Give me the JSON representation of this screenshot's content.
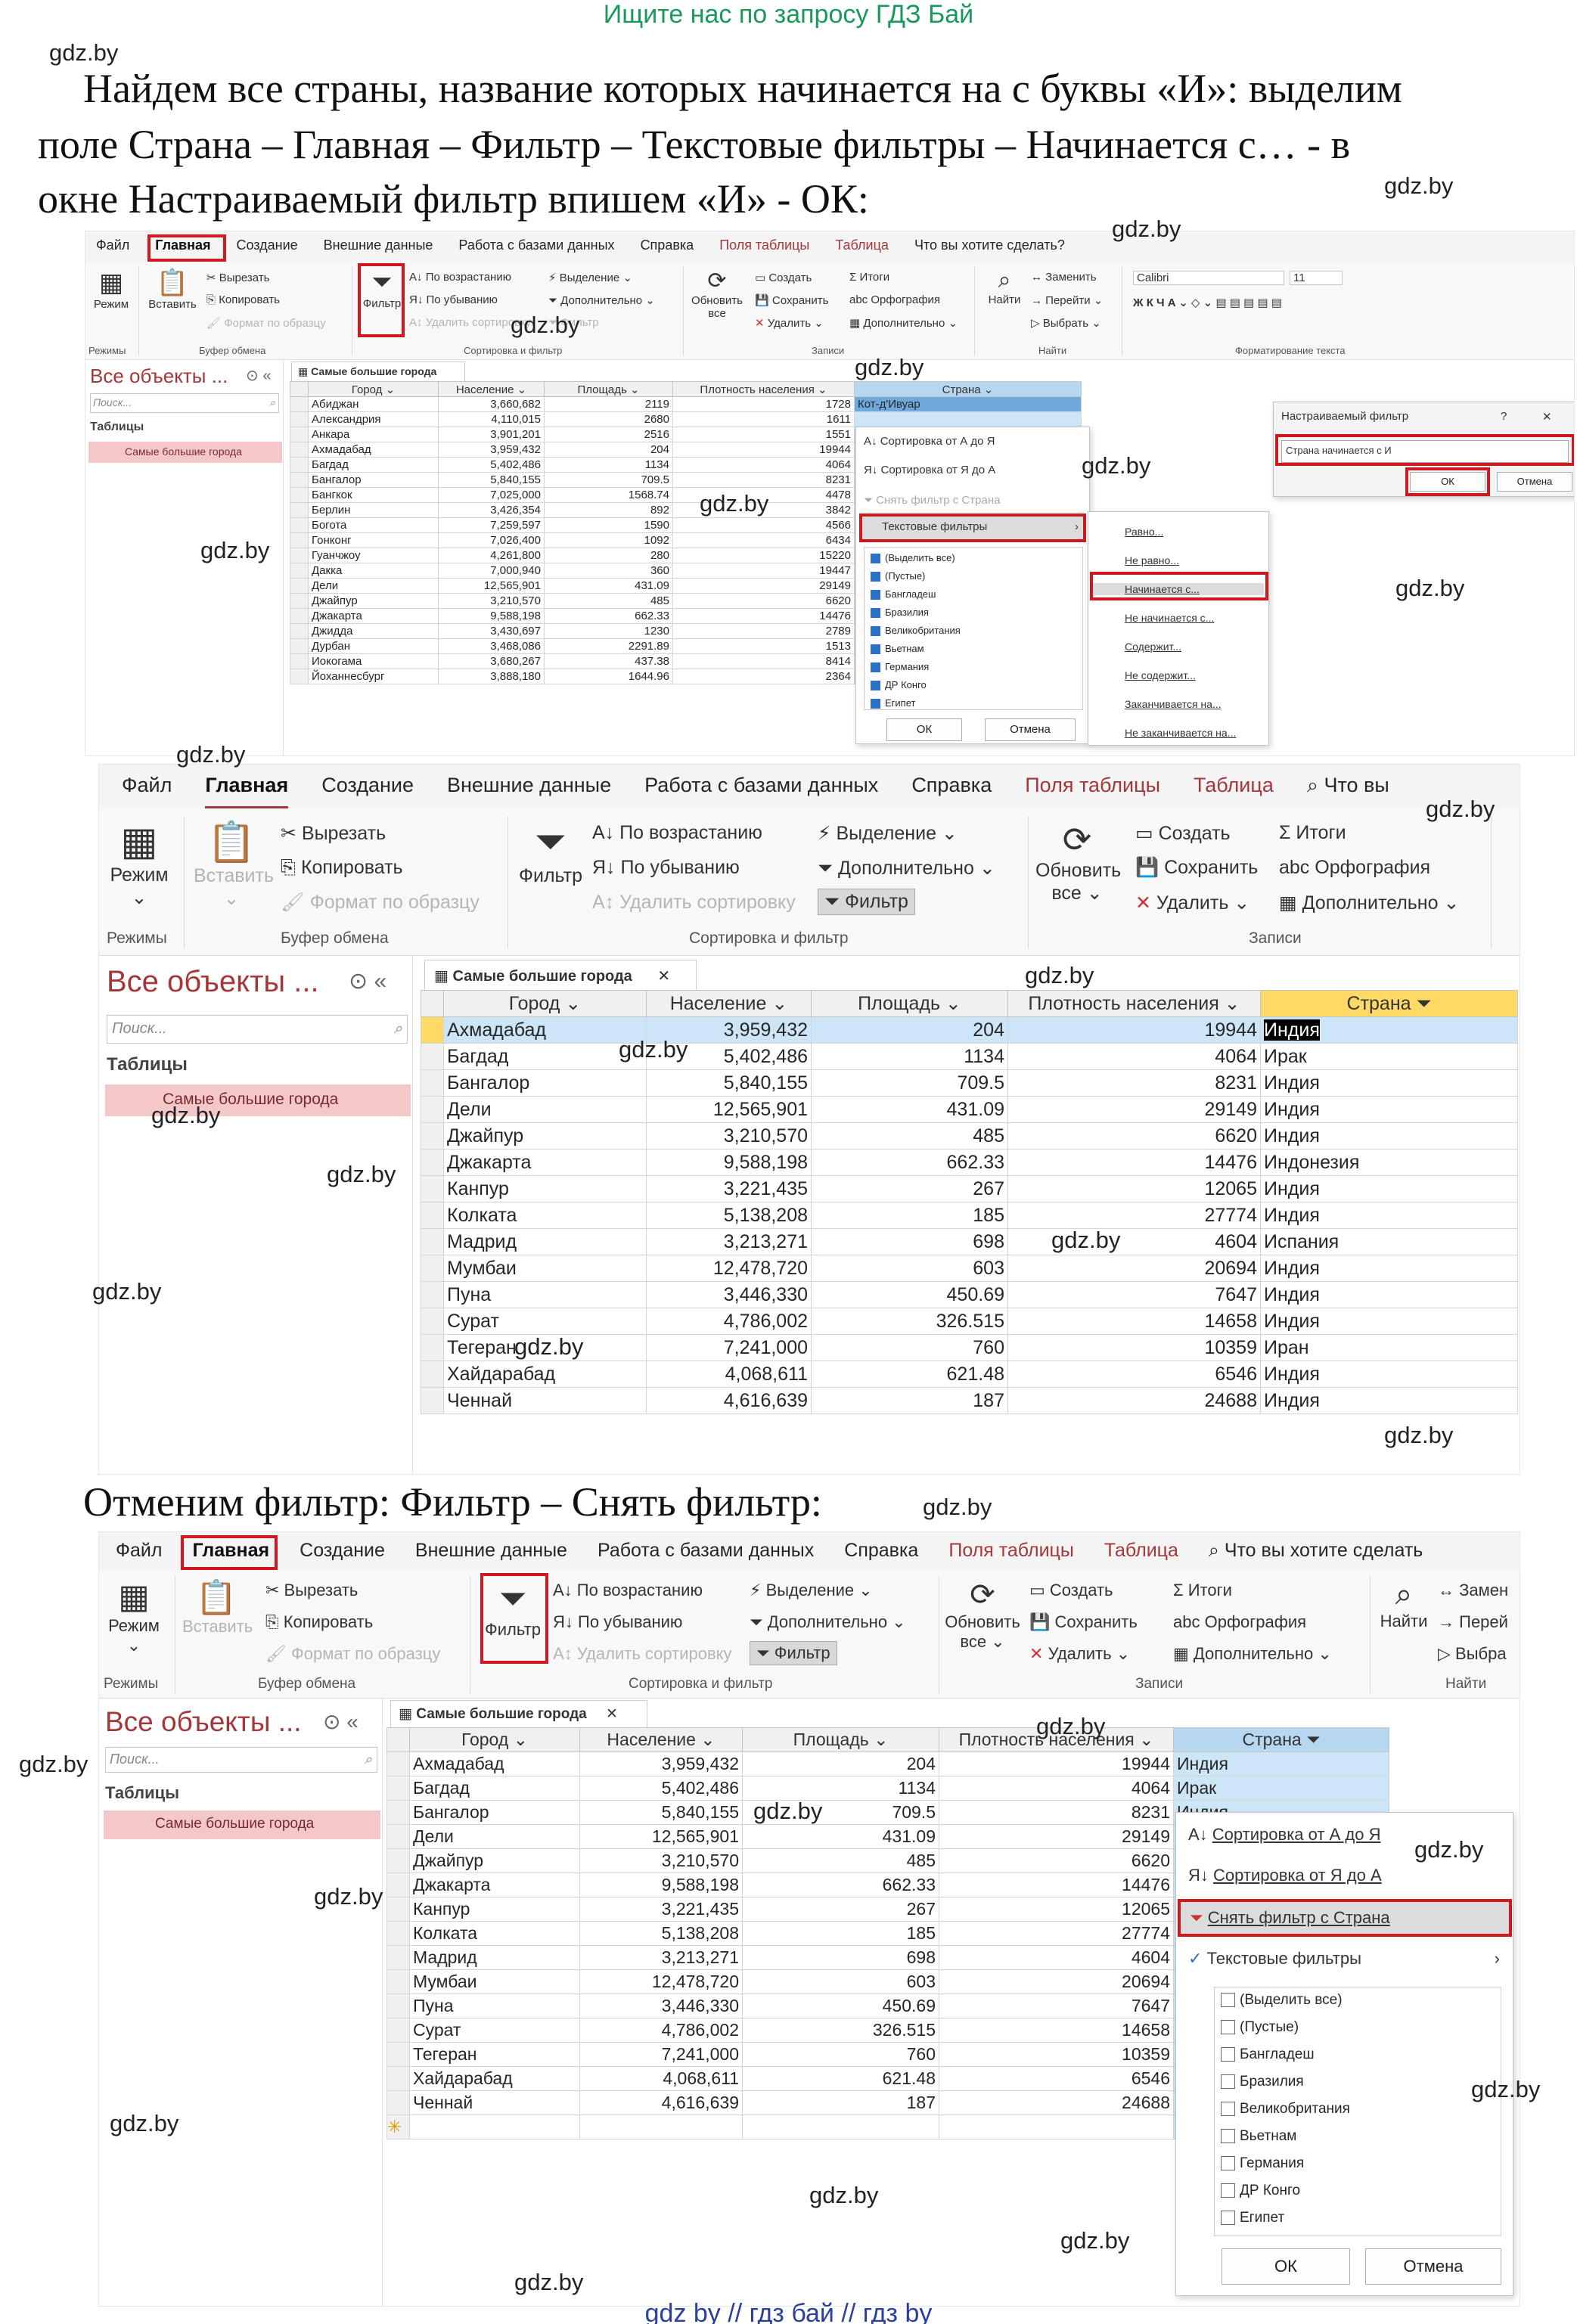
{
  "header_link": "Ищите нас по запросу ГДЗ Бай",
  "watermark": "gdz.by",
  "footer": "gdz by  //  гдз бай  //  гдз by",
  "intro_text_1": "Найдем все страны, название которых начинается на с буквы «И»: выделим",
  "intro_text_2": "поле Страна – Главная – Фильтр – Текстовые фильтры – Начинается с… - в",
  "intro_text_3": "окне Настраиваемый фильтр впишем «И» - ОК:",
  "cancel_text": "Отменим фильтр: Фильтр – Снять фильтр:",
  "menu": {
    "file": "Файл",
    "home": "Главная",
    "create": "Создание",
    "external": "Внешние данные",
    "database": "Работа с базами данных",
    "help": "Справка",
    "fields": "Поля таблицы",
    "table": "Таблица",
    "tell_me": "Что вы хотите сделать?",
    "tell_me_short": "Что вы",
    "tell_me_mid": "Что вы хотите сделать"
  },
  "ribbon": {
    "mode": "Режим",
    "modes": "Режимы",
    "paste": "Вставить",
    "cut": "Вырезать",
    "copy": "Копировать",
    "format_painter": "Формат по образцу",
    "clipboard": "Буфер обмена",
    "filter": "Фильтр",
    "ascending": "По возрастанию",
    "descending": "По убыванию",
    "remove_sort": "Удалить сортировку",
    "selection": "Выделение",
    "advanced": "Дополнительно",
    "toggle_filter": "Фильтр",
    "sort_filter": "Сортировка и фильтр",
    "refresh": "Обновить",
    "refresh_all": "все",
    "new": "Создать",
    "save": "Сохранить",
    "delete": "Удалить",
    "totals": "Итоги",
    "spelling": "Орфография",
    "more": "Дополнительно",
    "records": "Записи",
    "find": "Найти",
    "replace": "Заменить",
    "goto": "Перейти",
    "select": "Выбрать",
    "find_group": "Найти",
    "font": "Calibri",
    "size": "11",
    "text_format": "Форматирование текста",
    "replace_short": "Замен",
    "goto_short": "Перей",
    "select_short": "Выбра"
  },
  "nav": {
    "title": "Все объекты ...",
    "search": "Поиск...",
    "section": "Таблицы",
    "table_item": "Самые большие города"
  },
  "tab_label": "Самые большие города",
  "columns": [
    "Город",
    "Население",
    "Площадь",
    "Плотность населения",
    "Страна"
  ],
  "table1_rows": [
    [
      "Абиджан",
      "3,660,682",
      "2119",
      "1728",
      "Кот-д'Ивуар"
    ],
    [
      "Александрия",
      "4,110,015",
      "2680",
      "1611",
      ""
    ],
    [
      "Анкара",
      "3,901,201",
      "2516",
      "1551",
      ""
    ],
    [
      "Ахмадабад",
      "3,959,432",
      "204",
      "19944",
      ""
    ],
    [
      "Багдад",
      "5,402,486",
      "1134",
      "4064",
      ""
    ],
    [
      "Бангалор",
      "5,840,155",
      "709.5",
      "8231",
      ""
    ],
    [
      "Бангкок",
      "7,025,000",
      "1568.74",
      "4478",
      ""
    ],
    [
      "Берлин",
      "3,426,354",
      "892",
      "3842",
      ""
    ],
    [
      "Богота",
      "7,259,597",
      "1590",
      "4566",
      ""
    ],
    [
      "Гонконг",
      "7,026,400",
      "1092",
      "6434",
      ""
    ],
    [
      "Гуанчжоу",
      "4,261,800",
      "280",
      "15220",
      ""
    ],
    [
      "Дакка",
      "7,000,940",
      "360",
      "19447",
      ""
    ],
    [
      "Дели",
      "12,565,901",
      "431.09",
      "29149",
      ""
    ],
    [
      "Джайпур",
      "3,210,570",
      "485",
      "6620",
      ""
    ],
    [
      "Джакарта",
      "9,588,198",
      "662.33",
      "14476",
      ""
    ],
    [
      "Джидда",
      "3,430,697",
      "1230",
      "2789",
      ""
    ],
    [
      "Дурбан",
      "3,468,086",
      "2291.89",
      "1513",
      ""
    ],
    [
      "Иокогама",
      "3,680,267",
      "437.38",
      "8414",
      ""
    ],
    [
      "Йоханнесбург",
      "3,888,180",
      "1644.96",
      "2364",
      ""
    ]
  ],
  "sort_menu": {
    "asc": "Сортировка от А до Я",
    "desc": "Сортировка от Я до А",
    "clear": "Снять фильтр с Страна",
    "text_filters": "Текстовые фильтры"
  },
  "check_items": [
    "(Выделить все)",
    "(Пустые)",
    "Бангладеш",
    "Бразилия",
    "Великобритания",
    "Вьетнам",
    "Германия",
    "ДР Конго",
    "Египет"
  ],
  "ok": "ОК",
  "cancel": "Отмена",
  "submenu": [
    "Равно...",
    "Не равно...",
    "Начинается с...",
    "Не начинается с...",
    "Содержит...",
    "Не содержит...",
    "Заканчивается на...",
    "Не заканчивается на..."
  ],
  "dialog": {
    "title": "Настраиваемый фильтр",
    "help": "?",
    "close": "✕",
    "label": "Страна начинается с",
    "value": "И",
    "ok": "ОК",
    "cancel": "Отмена"
  },
  "filtered_rows": [
    [
      "Ахмадабад",
      "3,959,432",
      "204",
      "19944",
      "Индия"
    ],
    [
      "Багдад",
      "5,402,486",
      "1134",
      "4064",
      "Ирак"
    ],
    [
      "Бангалор",
      "5,840,155",
      "709.5",
      "8231",
      "Индия"
    ],
    [
      "Дели",
      "12,565,901",
      "431.09",
      "29149",
      "Индия"
    ],
    [
      "Джайпур",
      "3,210,570",
      "485",
      "6620",
      "Индия"
    ],
    [
      "Джакарта",
      "9,588,198",
      "662.33",
      "14476",
      "Индонезия"
    ],
    [
      "Канпур",
      "3,221,435",
      "267",
      "12065",
      "Индия"
    ],
    [
      "Колката",
      "5,138,208",
      "185",
      "27774",
      "Индия"
    ],
    [
      "Мадрид",
      "3,213,271",
      "698",
      "4604",
      "Испания"
    ],
    [
      "Мумбаи",
      "12,478,720",
      "603",
      "20694",
      "Индия"
    ],
    [
      "Пуна",
      "3,446,330",
      "450.69",
      "7647",
      "Индия"
    ],
    [
      "Сурат",
      "4,786,002",
      "326.515",
      "14658",
      "Индия"
    ],
    [
      "Тегеран",
      "7,241,000",
      "760",
      "10359",
      "Иран"
    ],
    [
      "Хайдарабад",
      "4,068,611",
      "621.48",
      "6546",
      "Индия"
    ],
    [
      "Ченнай",
      "4,616,639",
      "187",
      "24688",
      "Индия"
    ]
  ],
  "new_row_marker": "✳",
  "colors": {
    "accent": "#a4373a",
    "highlight": "#d01820",
    "selected_row": "#cde6f7",
    "checkbox": "#2a71c5"
  }
}
